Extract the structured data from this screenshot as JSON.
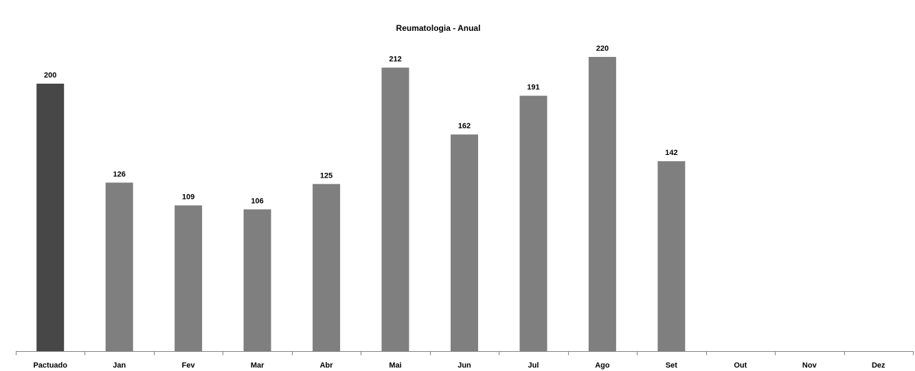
{
  "chart_data": {
    "type": "bar",
    "title": "Reumatologia - Anual",
    "xlabel": "",
    "ylabel": "",
    "ylim": [
      0,
      220
    ],
    "grid": false,
    "legend": "none",
    "categories": [
      "Pactuado",
      "Jan",
      "Fev",
      "Mar",
      "Abr",
      "Mai",
      "Jun",
      "Jul",
      "Ago",
      "Set",
      "Out",
      "Nov",
      "Dez"
    ],
    "series": [
      {
        "values": [
          200,
          126,
          109,
          106,
          125,
          212,
          162,
          191,
          220,
          142,
          null,
          null,
          null
        ]
      }
    ],
    "data_labels": [
      "200",
      "126",
      "109",
      "106",
      "125",
      "212",
      "162",
      "191",
      "220",
      "142",
      "",
      "",
      ""
    ],
    "colors": {
      "pactuado_bar": "#474747",
      "month_bar": "#7f7f7f",
      "axis": "#808080",
      "text": "#000000"
    }
  }
}
